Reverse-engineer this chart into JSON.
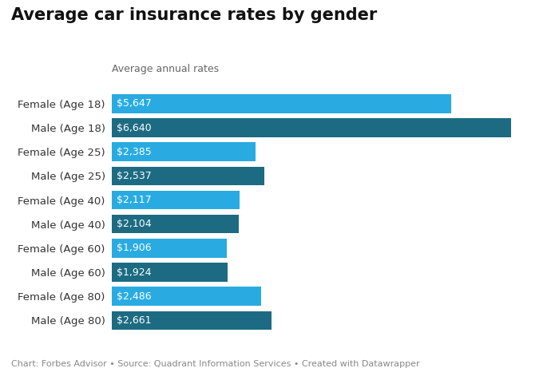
{
  "title": "Average car insurance rates by gender",
  "subtitle": "Average annual rates",
  "categories": [
    "Female (Age 18)",
    "Male (Age 18)",
    "Female (Age 25)",
    "Male (Age 25)",
    "Female (Age 40)",
    "Male (Age 40)",
    "Female (Age 60)",
    "Male (Age 60)",
    "Female (Age 80)",
    "Male (Age 80)"
  ],
  "values": [
    5647,
    6640,
    2385,
    2537,
    2117,
    2104,
    1906,
    1924,
    2486,
    2661
  ],
  "labels": [
    "$5,647",
    "$6,640",
    "$2,385",
    "$2,537",
    "$2,117",
    "$2,104",
    "$1,906",
    "$1,924",
    "$2,486",
    "$2,661"
  ],
  "colors": [
    "#29abe2",
    "#1c6b82",
    "#29abe2",
    "#1c6b82",
    "#29abe2",
    "#1c6b82",
    "#29abe2",
    "#1c6b82",
    "#29abe2",
    "#1c6b82"
  ],
  "footnote": "Chart: Forbes Advisor • Source: Quadrant Information Services • Created with Datawrapper",
  "background_color": "#ffffff",
  "xlim": [
    0,
    7200
  ],
  "bar_height": 0.78,
  "title_fontsize": 15,
  "subtitle_fontsize": 9,
  "label_fontsize": 9,
  "tick_fontsize": 9.5,
  "footnote_fontsize": 8
}
